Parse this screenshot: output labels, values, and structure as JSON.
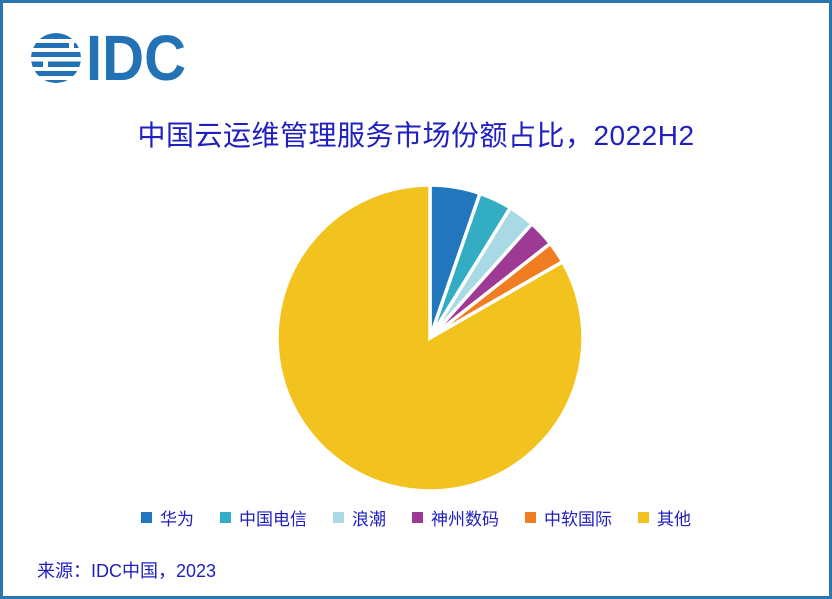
{
  "page": {
    "border_color": "#2B76AE",
    "background_color": "#FFFFFF"
  },
  "logo": {
    "text": "IDC",
    "color": "#2372B5"
  },
  "title": "中国云运维管理服务市场份额占比，2022H2",
  "title_color": "#2020C0",
  "chart_data": {
    "type": "pie",
    "title": "中国云运维管理服务市场份额占比，2022H2",
    "start_angle_deg": 0,
    "direction": "clockwise",
    "legend_position": "bottom",
    "gap_stroke_color": "#FFFFFF",
    "slices": [
      {
        "label": "华为",
        "value_pct": 5.3,
        "color": "#2176BD"
      },
      {
        "label": "中国电信",
        "value_pct": 3.5,
        "color": "#32ADC4"
      },
      {
        "label": "浪潮",
        "value_pct": 2.8,
        "color": "#A8D9E4"
      },
      {
        "label": "神州数码",
        "value_pct": 2.8,
        "color": "#9E3A96"
      },
      {
        "label": "中软国际",
        "value_pct": 2.3,
        "color": "#F07D22"
      },
      {
        "label": "其他",
        "value_pct": 83.3,
        "color": "#F2C21E"
      }
    ]
  },
  "source": "来源：IDC中国，2023"
}
